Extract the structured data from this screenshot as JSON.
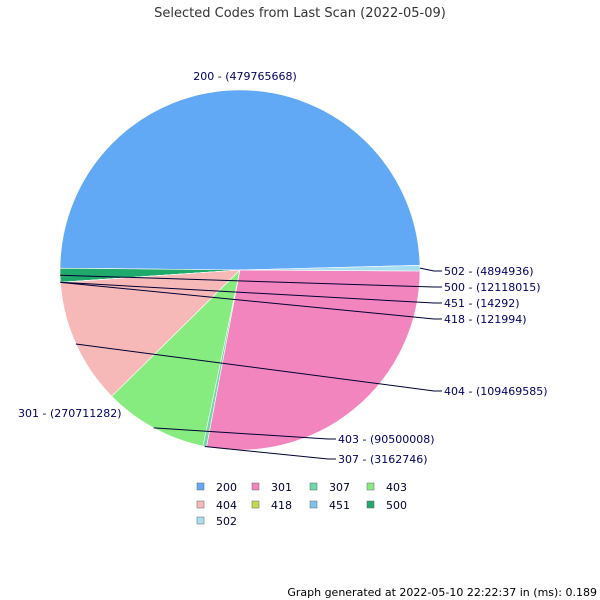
{
  "chart_data": {
    "type": "pie",
    "title": "Selected Codes from Last Scan (2022-05-09)",
    "slices": [
      {
        "code": "200",
        "value": 479765668,
        "label": "200 - (479765668)",
        "color": "#62a9f5"
      },
      {
        "code": "500",
        "value": 12118015,
        "label": "500 - (12118015)",
        "color": "#1faa6b"
      },
      {
        "code": "451",
        "value": 14292,
        "label": "451 - (14292)",
        "color": "#7ec4e8"
      },
      {
        "code": "418",
        "value": 121994,
        "label": "418 - (121994)",
        "color": "#c8d84b"
      },
      {
        "code": "404",
        "value": 109469585,
        "label": "404 - (109469585)",
        "color": "#f7b8b8"
      },
      {
        "code": "403",
        "value": 90500008,
        "label": "403 - (90500008)",
        "color": "#86ec80"
      },
      {
        "code": "307",
        "value": 3162746,
        "label": "307 - (3162746)",
        "color": "#6dd8a8"
      },
      {
        "code": "301",
        "value": 270711282,
        "label": "301 - (270711282)",
        "color": "#f285be"
      },
      {
        "code": "502",
        "value": 4894936,
        "label": "502 - (4894936)",
        "color": "#a8dff0"
      }
    ],
    "legend": [
      "200",
      "301",
      "307",
      "403",
      "404",
      "418",
      "451",
      "500",
      "502"
    ],
    "legend_placement": "bottom"
  },
  "footer": "Graph generated at 2022-05-10 22:22:37 in (ms): 0.189"
}
